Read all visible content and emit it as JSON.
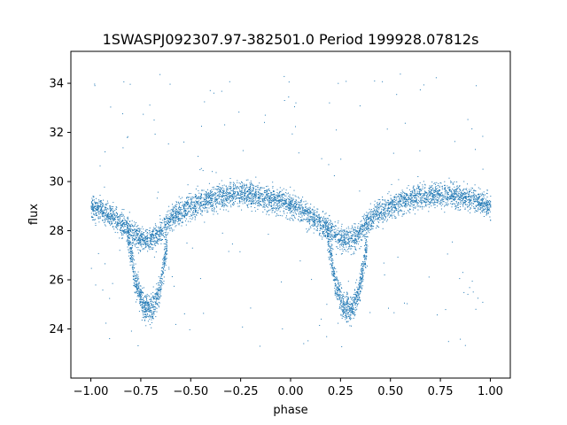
{
  "chart_data": {
    "type": "scatter",
    "title": "1SWASPJ092307.97-382501.0 Period 199928.07812s",
    "xlabel": "phase",
    "ylabel": "flux",
    "xlim": [
      -1.1,
      1.1
    ],
    "ylim": [
      22.0,
      35.3
    ],
    "x_ticks": [
      -1.0,
      -0.75,
      -0.5,
      -0.25,
      0.0,
      0.25,
      0.5,
      0.75,
      1.0
    ],
    "x_tick_labels": [
      "−1.00",
      "−0.75",
      "−0.50",
      "−0.25",
      "0.00",
      "0.25",
      "0.50",
      "0.75",
      "1.00"
    ],
    "y_ticks": [
      24,
      26,
      28,
      30,
      32,
      34
    ],
    "y_tick_labels": [
      "24",
      "26",
      "28",
      "30",
      "32",
      "34"
    ],
    "grid": false,
    "marker_color": "#1f77b4",
    "series": [
      {
        "profile_phase": [
          0.0,
          0.05,
          0.1,
          0.15,
          0.2,
          0.25,
          0.3,
          0.35,
          0.4,
          0.45,
          0.5,
          0.55,
          0.6,
          0.65,
          0.7,
          0.75,
          0.8,
          0.85,
          0.9,
          0.95,
          1.0
        ],
        "profile_flux": [
          29.0,
          28.9,
          28.6,
          28.3,
          28.0,
          27.7,
          27.6,
          28.0,
          28.5,
          28.8,
          29.0,
          29.2,
          29.3,
          29.4,
          29.5,
          29.5,
          29.5,
          29.4,
          29.3,
          29.2,
          29.0
        ],
        "eclipse_phase": [
          0.18,
          0.22,
          0.26,
          0.3,
          0.34,
          0.38
        ],
        "eclipse_flux": [
          28.0,
          26.0,
          25.0,
          24.8,
          25.5,
          27.5
        ],
        "scatter_sigma": 0.35,
        "phase_range": [
          -1.0,
          1.0
        ]
      }
    ]
  }
}
